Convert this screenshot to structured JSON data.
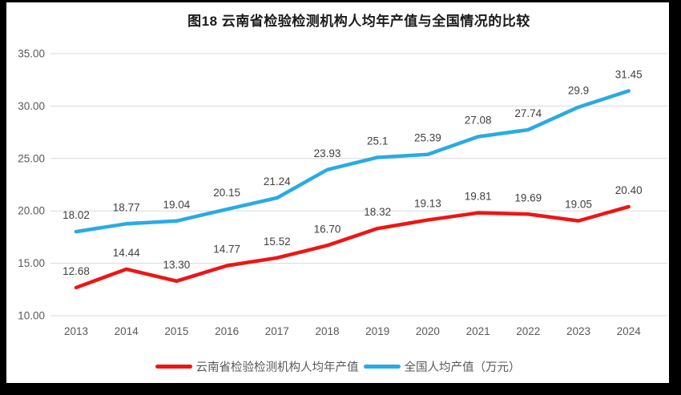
{
  "window": {
    "background_color": "#000000",
    "canvas_color": "#ffffff"
  },
  "chart_data": {
    "type": "line",
    "title": "图18 云南省检验检测机构人均年产值与全国情况的比较",
    "categories": [
      "2013",
      "2014",
      "2015",
      "2016",
      "2017",
      "2018",
      "2019",
      "2020",
      "2021",
      "2022",
      "2023",
      "2024"
    ],
    "series": [
      {
        "name": "云南省检验检测机构人均年产值",
        "color": "#EC1616",
        "values": [
          12.68,
          14.44,
          13.3,
          14.77,
          15.52,
          16.7,
          18.32,
          19.13,
          19.81,
          19.69,
          19.05,
          20.4
        ],
        "labels": [
          "12.68",
          "14.44",
          "13.30",
          "14.77",
          "15.52",
          "16.70",
          "18.32",
          "19.13",
          "19.81",
          "19.69",
          "19.05",
          "20.40"
        ]
      },
      {
        "name": "全国人均产值（万元）",
        "color": "#29ABE2",
        "values": [
          18.02,
          18.77,
          19.04,
          20.15,
          21.24,
          23.93,
          25.1,
          25.39,
          27.08,
          27.74,
          29.9,
          31.45
        ],
        "labels": [
          "18.02",
          "18.77",
          "19.04",
          "20.15",
          "21.24",
          "23.93",
          "25.1",
          "25.39",
          "27.08",
          "27.74",
          "29.9",
          "31.45"
        ]
      }
    ],
    "ylim": [
      10,
      35
    ],
    "yticks": [
      {
        "value": 35,
        "label": "35.00"
      },
      {
        "value": 30,
        "label": "30.00"
      },
      {
        "value": 25,
        "label": "25.00"
      },
      {
        "value": 20,
        "label": "20.00"
      },
      {
        "value": 15,
        "label": "15.00"
      },
      {
        "value": 10,
        "label": "10.00"
      }
    ],
    "grid": true,
    "legend_position": "bottom",
    "gridline_color": "#D9D9D9",
    "tick_label_color": "#595959",
    "data_label_color": "#404040",
    "line_width": 4.5
  }
}
